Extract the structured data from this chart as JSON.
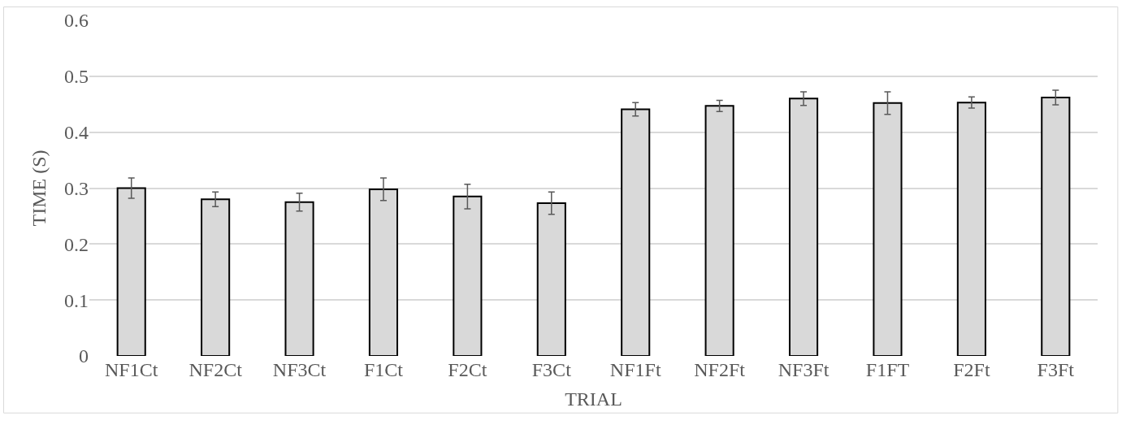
{
  "chart_data": {
    "type": "bar",
    "xlabel": "TRIAL",
    "ylabel": "TIME (S)",
    "categories": [
      "NF1Ct",
      "NF2Ct",
      "NF3Ct",
      "F1Ct",
      "F2Ct",
      "F3Ct",
      "NF1Ft",
      "NF2Ft",
      "NF3Ft",
      "F1FT",
      "F2Ft",
      "F3Ft"
    ],
    "values": [
      0.3,
      0.28,
      0.275,
      0.298,
      0.285,
      0.273,
      0.441,
      0.447,
      0.46,
      0.452,
      0.453,
      0.462
    ],
    "errors": [
      0.018,
      0.013,
      0.016,
      0.02,
      0.022,
      0.02,
      0.012,
      0.01,
      0.012,
      0.02,
      0.01,
      0.013
    ],
    "color": "#d9d9d9",
    "ylim": [
      0,
      0.6
    ],
    "yticks": [
      0,
      0.1,
      0.2,
      0.3,
      0.4,
      0.5,
      0.6
    ],
    "grid": "y",
    "legend": false
  }
}
